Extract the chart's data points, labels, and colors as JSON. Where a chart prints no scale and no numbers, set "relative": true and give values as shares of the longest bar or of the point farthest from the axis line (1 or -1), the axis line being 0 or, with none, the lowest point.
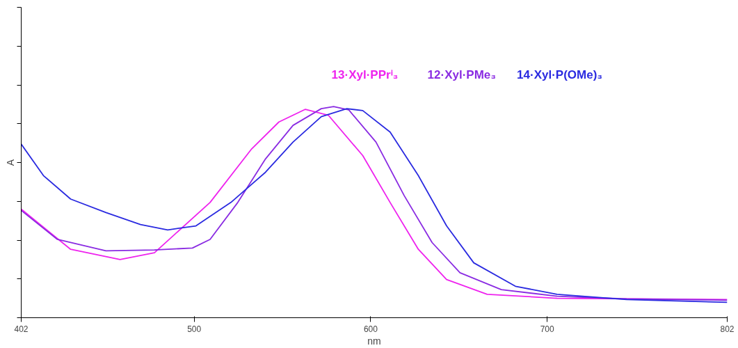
{
  "chart_data": {
    "type": "line",
    "relative": true,
    "xlabel": "nm",
    "ylabel": "A",
    "xlim": [
      402,
      802
    ],
    "xticks": [
      402,
      500,
      600,
      700,
      802
    ],
    "grid": false,
    "legend": "top",
    "marker": "none",
    "line_style": "solid",
    "series": [
      {
        "name": "13·Xyl·PPrⁱ₃",
        "color": "#ee22ee",
        "x": [
          402,
          430,
          458,
          477.5,
          509,
          532.6,
          548,
          563,
          576,
          595.5,
          611,
          627,
          643,
          666,
          705.6,
          802
        ],
        "values": [
          0.514,
          0.324,
          0.276,
          0.308,
          0.546,
          0.8,
          0.927,
          0.987,
          0.959,
          0.768,
          0.546,
          0.324,
          0.181,
          0.111,
          0.092,
          0.086
        ]
      },
      {
        "name": "12·Xyl·PMe₃",
        "color": "#8a2be2",
        "x": [
          402,
          422.5,
          450,
          477.5,
          499,
          509,
          524.7,
          540.4,
          556,
          572,
          579,
          587.6,
          603,
          619,
          634.8,
          650.6,
          674,
          705.6,
          745,
          802
        ],
        "values": [
          0.508,
          0.371,
          0.317,
          0.321,
          0.33,
          0.371,
          0.546,
          0.752,
          0.911,
          0.99,
          1,
          0.984,
          0.832,
          0.578,
          0.356,
          0.213,
          0.133,
          0.102,
          0.089,
          0.083
        ]
      },
      {
        "name": "14·Xyl·P(OMe)₃",
        "color": "#2a2ae0",
        "x": [
          402,
          414.6,
          430,
          450,
          469.6,
          485,
          501,
          520.8,
          540.4,
          556,
          572,
          586.5,
          595.5,
          611,
          627,
          643,
          658.4,
          682,
          705.6,
          745,
          802
        ],
        "values": [
          0.822,
          0.673,
          0.562,
          0.498,
          0.441,
          0.416,
          0.435,
          0.546,
          0.689,
          0.832,
          0.952,
          0.99,
          0.981,
          0.879,
          0.673,
          0.435,
          0.26,
          0.149,
          0.111,
          0.086,
          0.073
        ]
      }
    ]
  }
}
